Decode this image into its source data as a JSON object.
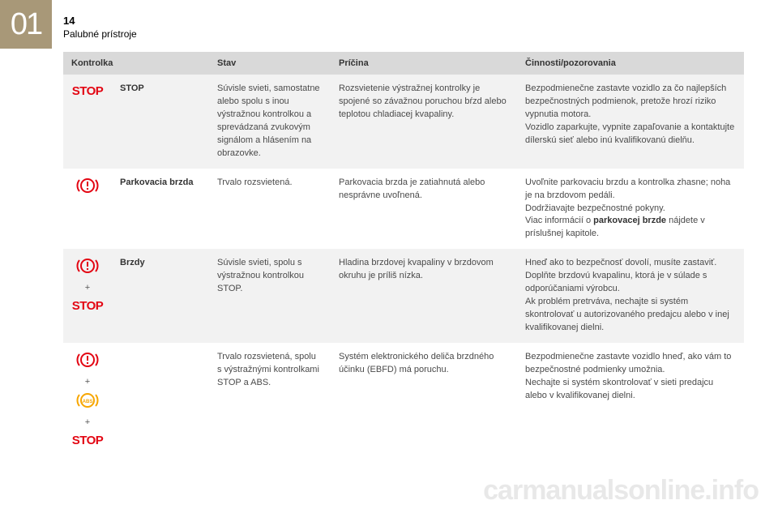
{
  "chapter": "01",
  "pageNumber": "14",
  "pageTitle": "Palubné prístroje",
  "headers": {
    "col1": "Kontrolka",
    "col2": "Stav",
    "col3": "Príčina",
    "col4": "Činnosti/pozorovania"
  },
  "rows": [
    {
      "alt": true,
      "icons": [
        "stop-text"
      ],
      "name": "STOP",
      "state": "Súvisle svieti, samostatne alebo spolu s inou výstražnou kontrolkou a sprevádzaná zvukovým signálom a hlásením na obrazovke.",
      "cause": "Rozsvietenie výstražnej kontrolky je spojené so závažnou poruchou bŕzd alebo teplotou chladiacej kvapaliny.",
      "action": "Bezpodmienečne zastavte vozidlo za čo najlepších bezpečnostných podmienok, pretože hrozí riziko vypnutia motora.\nVozidlo zaparkujte, vypnite zapaľovanie a kontaktujte dílerskú sieť alebo inú kvalifikovanú dielňu."
    },
    {
      "alt": false,
      "icons": [
        "brake-excl"
      ],
      "name": "Parkovacia brzda",
      "state": "Trvalo rozsvietená.",
      "cause": "Parkovacia brzda je zatiahnutá alebo nesprávne uvoľnená.",
      "action": "Uvoľnite parkovaciu brzdu a kontrolka zhasne; noha je na brzdovom pedáli.\nDodržiavajte bezpečnostné pokyny.\nViac informácií o ",
      "actionBold": "parkovacej brzde",
      "actionAfter": " nájdete v príslušnej kapitole."
    },
    {
      "alt": true,
      "icons": [
        "brake-excl",
        "plus",
        "stop-text"
      ],
      "name": "Brzdy",
      "state": "Súvisle svieti, spolu s výstražnou kontrolkou STOP.",
      "cause": "Hladina brzdovej kvapaliny v brzdovom okruhu je príliš nízka.",
      "action": "Hneď ako to bezpečnosť dovolí, musíte zastaviť.\nDoplňte brzdovú kvapalinu, ktorá je v súlade s odporúčaniami výrobcu.\nAk problém pretrváva, nechajte si systém skontrolovať u autorizovaného predajcu alebo v inej kvalifikovanej dielni."
    },
    {
      "alt": false,
      "icons": [
        "brake-excl",
        "plus",
        "abs",
        "plus",
        "stop-text"
      ],
      "name": "",
      "state": "Trvalo rozsvietená, spolu s výstražnými kontrolkami STOP a ABS.",
      "cause": "Systém elektronického deliča brzdného účinku (EBFD) má poruchu.",
      "action": "Bezpodmienečne zastavte vozidlo hneď, ako vám to bezpečnostné podmienky umožnia.\nNechajte si systém skontrolovať v sieti predajcu alebo v kvalifikovanej dielni."
    }
  ],
  "watermark": "carmanualsonline.info",
  "colors": {
    "red": "#e30613",
    "amber": "#f7a600",
    "badge": "#a89878"
  }
}
